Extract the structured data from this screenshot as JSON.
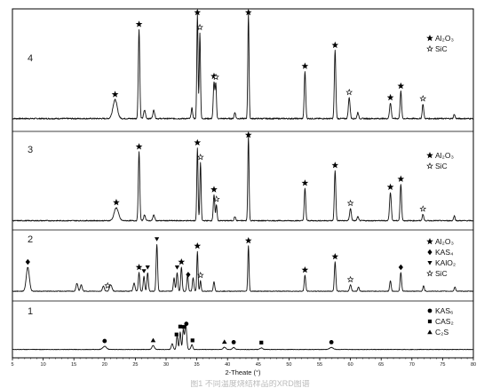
{
  "chart_data": {
    "type": "line",
    "xlabel": "2-Theate (°)",
    "xlim": [
      5,
      80
    ],
    "ticks": [
      5,
      10,
      15,
      20,
      25,
      30,
      35,
      40,
      45,
      50,
      55,
      60,
      65,
      70,
      75,
      80
    ],
    "grid": false,
    "legend_position": "right of each pattern",
    "series": [
      {
        "name": "4",
        "baseline": 0.08,
        "peaks": [
          [
            21.7,
            0.18,
            0.35
          ],
          [
            25.6,
            0.85,
            0.12
          ],
          [
            26.5,
            0.08,
            0.15
          ],
          [
            28.0,
            0.08,
            0.15
          ],
          [
            34.2,
            0.1,
            0.12
          ],
          [
            35.1,
            1.0,
            0.1
          ],
          [
            35.5,
            0.82,
            0.1
          ],
          [
            37.8,
            0.35,
            0.12
          ],
          [
            38.1,
            0.33,
            0.1
          ],
          [
            41.2,
            0.06,
            0.12
          ],
          [
            43.4,
            1.0,
            0.1
          ],
          [
            52.6,
            0.45,
            0.12
          ],
          [
            57.5,
            0.65,
            0.12
          ],
          [
            59.8,
            0.2,
            0.14
          ],
          [
            61.2,
            0.06,
            0.12
          ],
          [
            66.5,
            0.15,
            0.14
          ],
          [
            68.2,
            0.26,
            0.12
          ],
          [
            71.8,
            0.14,
            0.12
          ],
          [
            76.9,
            0.04,
            0.12
          ]
        ],
        "markers": [
          [
            21.7,
            "al"
          ],
          [
            25.6,
            "al"
          ],
          [
            35.1,
            "al"
          ],
          [
            35.5,
            "sic"
          ],
          [
            37.8,
            "al"
          ],
          [
            38.1,
            "sic"
          ],
          [
            43.4,
            "al"
          ],
          [
            52.6,
            "al"
          ],
          [
            57.5,
            "al"
          ],
          [
            59.8,
            "sic"
          ],
          [
            66.5,
            "al"
          ],
          [
            68.2,
            "al"
          ],
          [
            71.8,
            "sic"
          ]
        ]
      },
      {
        "name": "3",
        "baseline": 0.06,
        "peaks": [
          [
            21.9,
            0.16,
            0.35
          ],
          [
            25.6,
            0.85,
            0.12
          ],
          [
            26.5,
            0.07,
            0.15
          ],
          [
            28.0,
            0.07,
            0.15
          ],
          [
            35.1,
            0.9,
            0.1
          ],
          [
            35.6,
            0.72,
            0.1
          ],
          [
            37.8,
            0.32,
            0.12
          ],
          [
            38.2,
            0.2,
            0.1
          ],
          [
            41.2,
            0.05,
            0.12
          ],
          [
            43.4,
            1.05,
            0.1
          ],
          [
            52.6,
            0.4,
            0.12
          ],
          [
            57.5,
            0.62,
            0.12
          ],
          [
            60.0,
            0.15,
            0.14
          ],
          [
            61.2,
            0.05,
            0.12
          ],
          [
            66.5,
            0.35,
            0.14
          ],
          [
            68.2,
            0.45,
            0.12
          ],
          [
            71.8,
            0.08,
            0.12
          ],
          [
            76.9,
            0.06,
            0.12
          ]
        ],
        "markers": [
          [
            21.9,
            "al"
          ],
          [
            25.6,
            "al"
          ],
          [
            35.1,
            "al"
          ],
          [
            35.6,
            "sic"
          ],
          [
            37.8,
            "al"
          ],
          [
            38.2,
            "sic"
          ],
          [
            43.4,
            "al"
          ],
          [
            52.6,
            "al"
          ],
          [
            57.5,
            "al"
          ],
          [
            60.0,
            "sic"
          ],
          [
            66.5,
            "al"
          ],
          [
            68.2,
            "al"
          ],
          [
            71.8,
            "sic"
          ]
        ]
      },
      {
        "name": "2",
        "baseline": 0.1,
        "peaks": [
          [
            7.5,
            0.45,
            0.25
          ],
          [
            15.5,
            0.15,
            0.15
          ],
          [
            16.2,
            0.12,
            0.15
          ],
          [
            19.8,
            0.1,
            0.15
          ],
          [
            21.0,
            0.12,
            0.2
          ],
          [
            24.8,
            0.15,
            0.15
          ],
          [
            25.6,
            0.35,
            0.12
          ],
          [
            26.4,
            0.28,
            0.12
          ],
          [
            27.0,
            0.35,
            0.12
          ],
          [
            28.5,
            0.88,
            0.12
          ],
          [
            31.3,
            0.25,
            0.12
          ],
          [
            31.8,
            0.35,
            0.12
          ],
          [
            32.5,
            0.45,
            0.12
          ],
          [
            33.5,
            0.3,
            0.12
          ],
          [
            34.4,
            0.25,
            0.12
          ],
          [
            35.1,
            0.75,
            0.1
          ],
          [
            35.6,
            0.2,
            0.1
          ],
          [
            37.8,
            0.18,
            0.12
          ],
          [
            43.4,
            0.85,
            0.1
          ],
          [
            52.6,
            0.3,
            0.12
          ],
          [
            57.5,
            0.55,
            0.12
          ],
          [
            60.0,
            0.12,
            0.14
          ],
          [
            61.3,
            0.08,
            0.12
          ],
          [
            66.5,
            0.2,
            0.12
          ],
          [
            68.2,
            0.35,
            0.12
          ],
          [
            71.9,
            0.1,
            0.12
          ],
          [
            77.0,
            0.08,
            0.12
          ]
        ],
        "markers": [
          [
            7.5,
            "kas4"
          ],
          [
            20.5,
            "sic"
          ],
          [
            25.6,
            "al"
          ],
          [
            26.4,
            "kaio2"
          ],
          [
            27.0,
            "kaio2"
          ],
          [
            28.5,
            "kaio2"
          ],
          [
            31.8,
            "kaio2"
          ],
          [
            32.5,
            "al"
          ],
          [
            33.6,
            "kas4"
          ],
          [
            35.1,
            "al"
          ],
          [
            35.6,
            "sic"
          ],
          [
            43.4,
            "al"
          ],
          [
            52.6,
            "al"
          ],
          [
            57.5,
            "al"
          ],
          [
            60.0,
            "sic"
          ],
          [
            68.2,
            "kas4"
          ]
        ]
      },
      {
        "name": "1",
        "baseline": 0.1,
        "peaks": [
          [
            20.0,
            0.08,
            0.3
          ],
          [
            27.9,
            0.1,
            0.2
          ],
          [
            31.0,
            0.15,
            0.15
          ],
          [
            31.8,
            0.35,
            0.12
          ],
          [
            32.3,
            0.45,
            0.12
          ],
          [
            32.8,
            0.5,
            0.12
          ],
          [
            33.2,
            0.65,
            0.15
          ],
          [
            34.2,
            0.12,
            0.15
          ],
          [
            39.5,
            0.06,
            0.2
          ],
          [
            41.0,
            0.05,
            0.2
          ],
          [
            45.5,
            0.04,
            0.2
          ],
          [
            56.9,
            0.05,
            0.3
          ]
        ],
        "markers": [
          [
            20.0,
            "kas6"
          ],
          [
            27.9,
            "c2s"
          ],
          [
            31.7,
            "cas2"
          ],
          [
            32.3,
            "cas2"
          ],
          [
            32.9,
            "cas2"
          ],
          [
            33.3,
            "kas6"
          ],
          [
            34.3,
            "cas2"
          ],
          [
            39.5,
            "c2s"
          ],
          [
            41.0,
            "kas6"
          ],
          [
            45.5,
            "cas2"
          ],
          [
            56.9,
            "kas6"
          ]
        ]
      }
    ],
    "legends": [
      {
        "pattern": "4",
        "entries": [
          {
            "symbol": "al",
            "text": "Al₂O₃"
          },
          {
            "symbol": "sic",
            "text": "SiC"
          }
        ]
      },
      {
        "pattern": "3",
        "entries": [
          {
            "symbol": "al",
            "text": "Al₂O₃"
          },
          {
            "symbol": "sic",
            "text": "SiC"
          }
        ]
      },
      {
        "pattern": "2",
        "entries": [
          {
            "symbol": "al",
            "text": "Al₂O₃"
          },
          {
            "symbol": "kas4",
            "text": "KAS₄"
          },
          {
            "symbol": "kaio2",
            "text": "KAlO₂"
          },
          {
            "symbol": "sic",
            "text": "SiC"
          }
        ]
      },
      {
        "pattern": "1",
        "entries": [
          {
            "symbol": "kas6",
            "text": "KAS₆"
          },
          {
            "symbol": "cas2",
            "text": "CAS₂"
          },
          {
            "symbol": "c2s",
            "text": "C₂S"
          }
        ]
      }
    ],
    "caption": "图1 不同温度烧结样品的XRD图谱"
  }
}
